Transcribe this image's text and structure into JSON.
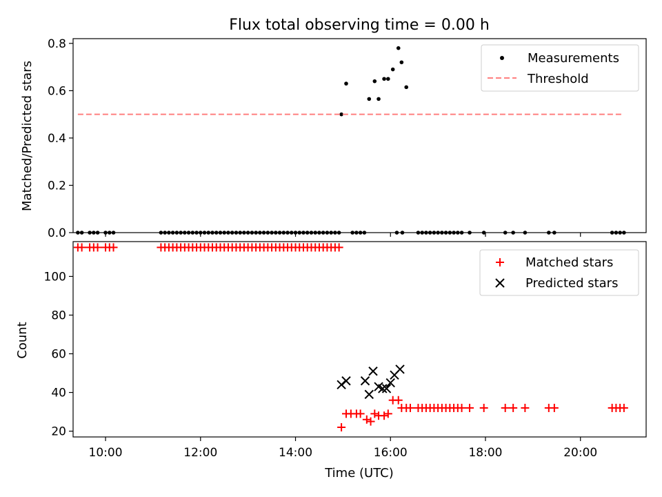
{
  "title": "Flux total observing time = 0.00 h",
  "colors": {
    "measurement": "#000000",
    "threshold": "#ff7f7f",
    "matched": "#ff0000",
    "predicted": "#000000"
  },
  "chart_data": [
    {
      "type": "scatter",
      "title": "Flux total observing time = 0.00 h",
      "xlabel": "",
      "ylabel": "Matched/Predicted stars",
      "xlim": [
        "09:19",
        "21:23"
      ],
      "ylim": [
        0,
        0.82
      ],
      "x_ticks": [
        "10:00",
        "12:00",
        "14:00",
        "16:00",
        "18:00",
        "20:00"
      ],
      "y_ticks": [
        "0.0",
        "0.2",
        "0.4",
        "0.6",
        "0.8"
      ],
      "legend": {
        "position": "top-right",
        "entries": [
          "Measurements",
          "Threshold"
        ]
      },
      "grid": false,
      "series": [
        {
          "name": "Measurements",
          "marker": "dot",
          "points": [
            [
              "09:25",
              0
            ],
            [
              "09:30",
              0
            ],
            [
              "09:40",
              0
            ],
            [
              "09:45",
              0
            ],
            [
              "09:50",
              0
            ],
            [
              "10:00",
              0
            ],
            [
              "10:05",
              0
            ],
            [
              "10:10",
              0
            ],
            [
              "11:10",
              0
            ],
            [
              "11:15",
              0
            ],
            [
              "11:20",
              0
            ],
            [
              "11:25",
              0
            ],
            [
              "11:30",
              0
            ],
            [
              "11:35",
              0
            ],
            [
              "11:40",
              0
            ],
            [
              "11:45",
              0
            ],
            [
              "11:50",
              0
            ],
            [
              "11:55",
              0
            ],
            [
              "12:00",
              0
            ],
            [
              "12:05",
              0
            ],
            [
              "12:10",
              0
            ],
            [
              "12:15",
              0
            ],
            [
              "12:20",
              0
            ],
            [
              "12:25",
              0
            ],
            [
              "12:30",
              0
            ],
            [
              "12:35",
              0
            ],
            [
              "12:40",
              0
            ],
            [
              "12:45",
              0
            ],
            [
              "12:50",
              0
            ],
            [
              "12:55",
              0
            ],
            [
              "13:00",
              0
            ],
            [
              "13:05",
              0
            ],
            [
              "13:10",
              0
            ],
            [
              "13:15",
              0
            ],
            [
              "13:20",
              0
            ],
            [
              "13:25",
              0
            ],
            [
              "13:30",
              0
            ],
            [
              "13:35",
              0
            ],
            [
              "13:40",
              0
            ],
            [
              "13:45",
              0
            ],
            [
              "13:50",
              0
            ],
            [
              "13:55",
              0
            ],
            [
              "14:00",
              0
            ],
            [
              "14:05",
              0
            ],
            [
              "14:10",
              0
            ],
            [
              "14:15",
              0
            ],
            [
              "14:20",
              0
            ],
            [
              "14:25",
              0
            ],
            [
              "14:30",
              0
            ],
            [
              "14:35",
              0
            ],
            [
              "14:40",
              0
            ],
            [
              "14:45",
              0
            ],
            [
              "14:50",
              0
            ],
            [
              "14:55",
              0
            ],
            [
              "14:58",
              0.5
            ],
            [
              "15:04",
              0.63
            ],
            [
              "15:12",
              0
            ],
            [
              "15:17",
              0
            ],
            [
              "15:22",
              0
            ],
            [
              "15:27",
              0
            ],
            [
              "15:33",
              0.565
            ],
            [
              "15:40",
              0.64
            ],
            [
              "15:45",
              0.565
            ],
            [
              "15:52",
              0.65
            ],
            [
              "15:57",
              0.65
            ],
            [
              "16:03",
              0.69
            ],
            [
              "16:10",
              0.78
            ],
            [
              "16:14",
              0.72
            ],
            [
              "16:20",
              0.615
            ],
            [
              "16:08",
              0
            ],
            [
              "16:15",
              0
            ],
            [
              "16:35",
              0
            ],
            [
              "16:40",
              0
            ],
            [
              "16:45",
              0
            ],
            [
              "16:50",
              0
            ],
            [
              "16:55",
              0
            ],
            [
              "17:00",
              0
            ],
            [
              "17:05",
              0
            ],
            [
              "17:10",
              0
            ],
            [
              "17:15",
              0
            ],
            [
              "17:20",
              0
            ],
            [
              "17:25",
              0
            ],
            [
              "17:30",
              0
            ],
            [
              "17:40",
              0
            ],
            [
              "17:58",
              0
            ],
            [
              "18:25",
              0
            ],
            [
              "18:35",
              0
            ],
            [
              "18:50",
              0
            ],
            [
              "19:20",
              0
            ],
            [
              "19:27",
              0
            ],
            [
              "20:40",
              0
            ],
            [
              "20:45",
              0
            ],
            [
              "20:50",
              0
            ],
            [
              "20:55",
              0
            ]
          ]
        },
        {
          "name": "Threshold",
          "marker": "dashed-line",
          "points": [
            [
              "09:25",
              0.5
            ],
            [
              "20:55",
              0.5
            ]
          ]
        }
      ]
    },
    {
      "type": "scatter",
      "xlabel": "Time (UTC)",
      "ylabel": "Count",
      "xlim": [
        "09:19",
        "21:23"
      ],
      "ylim": [
        17,
        118
      ],
      "x_ticks": [
        "10:00",
        "12:00",
        "14:00",
        "16:00",
        "18:00",
        "20:00"
      ],
      "y_ticks": [
        "20",
        "40",
        "60",
        "80",
        "100"
      ],
      "legend": {
        "position": "top-right",
        "entries": [
          "Matched stars",
          "Predicted stars"
        ]
      },
      "grid": false,
      "series": [
        {
          "name": "Matched stars",
          "marker": "plus",
          "points": [
            [
              "09:25",
              115
            ],
            [
              "09:30",
              115
            ],
            [
              "09:40",
              115
            ],
            [
              "09:45",
              115
            ],
            [
              "09:50",
              115
            ],
            [
              "10:00",
              115
            ],
            [
              "10:05",
              115
            ],
            [
              "10:10",
              115
            ],
            [
              "11:10",
              115
            ],
            [
              "11:15",
              115
            ],
            [
              "11:20",
              115
            ],
            [
              "11:25",
              115
            ],
            [
              "11:30",
              115
            ],
            [
              "11:35",
              115
            ],
            [
              "11:40",
              115
            ],
            [
              "11:45",
              115
            ],
            [
              "11:50",
              115
            ],
            [
              "11:55",
              115
            ],
            [
              "12:00",
              115
            ],
            [
              "12:05",
              115
            ],
            [
              "12:10",
              115
            ],
            [
              "12:15",
              115
            ],
            [
              "12:20",
              115
            ],
            [
              "12:25",
              115
            ],
            [
              "12:30",
              115
            ],
            [
              "12:35",
              115
            ],
            [
              "12:40",
              115
            ],
            [
              "12:45",
              115
            ],
            [
              "12:50",
              115
            ],
            [
              "12:55",
              115
            ],
            [
              "13:00",
              115
            ],
            [
              "13:05",
              115
            ],
            [
              "13:10",
              115
            ],
            [
              "13:15",
              115
            ],
            [
              "13:20",
              115
            ],
            [
              "13:25",
              115
            ],
            [
              "13:30",
              115
            ],
            [
              "13:35",
              115
            ],
            [
              "13:40",
              115
            ],
            [
              "13:45",
              115
            ],
            [
              "13:50",
              115
            ],
            [
              "13:55",
              115
            ],
            [
              "14:00",
              115
            ],
            [
              "14:05",
              115
            ],
            [
              "14:10",
              115
            ],
            [
              "14:15",
              115
            ],
            [
              "14:20",
              115
            ],
            [
              "14:25",
              115
            ],
            [
              "14:30",
              115
            ],
            [
              "14:35",
              115
            ],
            [
              "14:40",
              115
            ],
            [
              "14:45",
              115
            ],
            [
              "14:50",
              115
            ],
            [
              "14:55",
              115
            ],
            [
              "14:58",
              22
            ],
            [
              "15:04",
              29
            ],
            [
              "15:10",
              29
            ],
            [
              "15:17",
              29
            ],
            [
              "15:22",
              29
            ],
            [
              "15:30",
              26
            ],
            [
              "15:35",
              25
            ],
            [
              "15:40",
              29
            ],
            [
              "15:45",
              28
            ],
            [
              "15:52",
              28
            ],
            [
              "15:57",
              29
            ],
            [
              "16:03",
              36
            ],
            [
              "16:10",
              36
            ],
            [
              "16:14",
              32
            ],
            [
              "16:20",
              32
            ],
            [
              "16:25",
              32
            ],
            [
              "16:35",
              32
            ],
            [
              "16:40",
              32
            ],
            [
              "16:45",
              32
            ],
            [
              "16:50",
              32
            ],
            [
              "16:55",
              32
            ],
            [
              "17:00",
              32
            ],
            [
              "17:05",
              32
            ],
            [
              "17:10",
              32
            ],
            [
              "17:15",
              32
            ],
            [
              "17:20",
              32
            ],
            [
              "17:25",
              32
            ],
            [
              "17:30",
              32
            ],
            [
              "17:40",
              32
            ],
            [
              "17:58",
              32
            ],
            [
              "18:25",
              32
            ],
            [
              "18:35",
              32
            ],
            [
              "18:50",
              32
            ],
            [
              "19:20",
              32
            ],
            [
              "19:27",
              32
            ],
            [
              "20:40",
              32
            ],
            [
              "20:45",
              32
            ],
            [
              "20:50",
              32
            ],
            [
              "20:55",
              32
            ]
          ]
        },
        {
          "name": "Predicted stars",
          "marker": "x",
          "points": [
            [
              "14:58",
              44
            ],
            [
              "15:04",
              46
            ],
            [
              "15:28",
              46
            ],
            [
              "15:33",
              39
            ],
            [
              "15:38",
              51
            ],
            [
              "15:45",
              43
            ],
            [
              "15:50",
              42
            ],
            [
              "15:55",
              42
            ],
            [
              "16:00",
              45
            ],
            [
              "16:05",
              49
            ],
            [
              "16:12",
              52
            ]
          ]
        }
      ]
    }
  ]
}
